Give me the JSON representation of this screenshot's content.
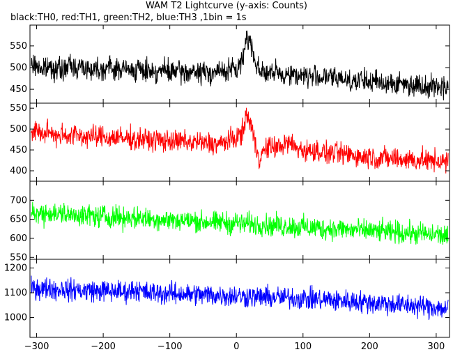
{
  "chart_data": {
    "type": "line",
    "title": "WAM T2 Lightcurve (y-axis: Counts)",
    "subtitle": "black:TH0, red:TH1, green:TH2, blue:TH3 ,1bin = 1s",
    "xlabel": "",
    "ylabel": "",
    "grid": false,
    "legend": "none",
    "x_range": [
      -310,
      320
    ],
    "x_ticks": [
      -300,
      -200,
      -100,
      0,
      100,
      200,
      300
    ],
    "panels": [
      {
        "name": "TH0",
        "color": "#000000",
        "ylim": [
          418,
          598
        ],
        "y_ticks": [
          450,
          500,
          550
        ],
        "series": [
          {
            "x": -300,
            "y": 505
          },
          {
            "x": -290,
            "y": 495
          },
          {
            "x": -280,
            "y": 502
          },
          {
            "x": -270,
            "y": 498
          },
          {
            "x": -260,
            "y": 493
          },
          {
            "x": -250,
            "y": 507
          },
          {
            "x": -240,
            "y": 499
          },
          {
            "x": -230,
            "y": 504
          },
          {
            "x": -220,
            "y": 495
          },
          {
            "x": -210,
            "y": 500
          },
          {
            "x": -200,
            "y": 497
          },
          {
            "x": -190,
            "y": 503
          },
          {
            "x": -180,
            "y": 494
          },
          {
            "x": -170,
            "y": 499
          },
          {
            "x": -160,
            "y": 492
          },
          {
            "x": -150,
            "y": 498
          },
          {
            "x": -140,
            "y": 491
          },
          {
            "x": -130,
            "y": 496
          },
          {
            "x": -120,
            "y": 489
          },
          {
            "x": -110,
            "y": 495
          },
          {
            "x": -100,
            "y": 488
          },
          {
            "x": -90,
            "y": 493
          },
          {
            "x": -80,
            "y": 487
          },
          {
            "x": -70,
            "y": 491
          },
          {
            "x": -60,
            "y": 486
          },
          {
            "x": -50,
            "y": 490
          },
          {
            "x": -40,
            "y": 487
          },
          {
            "x": -30,
            "y": 492
          },
          {
            "x": -20,
            "y": 489
          },
          {
            "x": -10,
            "y": 498
          },
          {
            "x": 0,
            "y": 493
          },
          {
            "x": 10,
            "y": 520
          },
          {
            "x": 15,
            "y": 575
          },
          {
            "x": 20,
            "y": 560
          },
          {
            "x": 25,
            "y": 540
          },
          {
            "x": 30,
            "y": 505
          },
          {
            "x": 40,
            "y": 490
          },
          {
            "x": 50,
            "y": 485
          },
          {
            "x": 60,
            "y": 488
          },
          {
            "x": 70,
            "y": 483
          },
          {
            "x": 80,
            "y": 487
          },
          {
            "x": 90,
            "y": 481
          },
          {
            "x": 100,
            "y": 484
          },
          {
            "x": 110,
            "y": 478
          },
          {
            "x": 120,
            "y": 481
          },
          {
            "x": 130,
            "y": 476
          },
          {
            "x": 140,
            "y": 479
          },
          {
            "x": 150,
            "y": 474
          },
          {
            "x": 160,
            "y": 477
          },
          {
            "x": 170,
            "y": 471
          },
          {
            "x": 180,
            "y": 468
          },
          {
            "x": 190,
            "y": 472
          },
          {
            "x": 200,
            "y": 466
          },
          {
            "x": 210,
            "y": 469
          },
          {
            "x": 220,
            "y": 464
          },
          {
            "x": 230,
            "y": 467
          },
          {
            "x": 240,
            "y": 461
          },
          {
            "x": 250,
            "y": 465
          },
          {
            "x": 260,
            "y": 459
          },
          {
            "x": 270,
            "y": 462
          },
          {
            "x": 280,
            "y": 457
          },
          {
            "x": 290,
            "y": 460
          },
          {
            "x": 300,
            "y": 455
          },
          {
            "x": 310,
            "y": 458
          },
          {
            "x": 318,
            "y": 452
          }
        ]
      },
      {
        "name": "TH1",
        "color": "#ff0000",
        "ylim": [
          375,
          562
        ],
        "y_ticks": [
          400,
          450,
          500,
          550
        ],
        "series": [
          {
            "x": -300,
            "y": 495
          },
          {
            "x": -290,
            "y": 487
          },
          {
            "x": -280,
            "y": 493
          },
          {
            "x": -270,
            "y": 485
          },
          {
            "x": -260,
            "y": 490
          },
          {
            "x": -250,
            "y": 482
          },
          {
            "x": -240,
            "y": 488
          },
          {
            "x": -230,
            "y": 480
          },
          {
            "x": -220,
            "y": 486
          },
          {
            "x": -210,
            "y": 478
          },
          {
            "x": -200,
            "y": 484
          },
          {
            "x": -190,
            "y": 477
          },
          {
            "x": -180,
            "y": 482
          },
          {
            "x": -170,
            "y": 475
          },
          {
            "x": -160,
            "y": 480
          },
          {
            "x": -150,
            "y": 473
          },
          {
            "x": -140,
            "y": 478
          },
          {
            "x": -130,
            "y": 471
          },
          {
            "x": -120,
            "y": 476
          },
          {
            "x": -110,
            "y": 470
          },
          {
            "x": -100,
            "y": 474
          },
          {
            "x": -90,
            "y": 468
          },
          {
            "x": -80,
            "y": 472
          },
          {
            "x": -70,
            "y": 467
          },
          {
            "x": -60,
            "y": 470
          },
          {
            "x": -50,
            "y": 465
          },
          {
            "x": -40,
            "y": 468
          },
          {
            "x": -30,
            "y": 463
          },
          {
            "x": -20,
            "y": 467
          },
          {
            "x": -10,
            "y": 474
          },
          {
            "x": 0,
            "y": 478
          },
          {
            "x": 10,
            "y": 495
          },
          {
            "x": 15,
            "y": 535
          },
          {
            "x": 20,
            "y": 520
          },
          {
            "x": 25,
            "y": 490
          },
          {
            "x": 30,
            "y": 452
          },
          {
            "x": 35,
            "y": 430
          },
          {
            "x": 40,
            "y": 445
          },
          {
            "x": 50,
            "y": 458
          },
          {
            "x": 60,
            "y": 455
          },
          {
            "x": 70,
            "y": 462
          },
          {
            "x": 80,
            "y": 468
          },
          {
            "x": 90,
            "y": 454
          },
          {
            "x": 100,
            "y": 450
          },
          {
            "x": 110,
            "y": 446
          },
          {
            "x": 120,
            "y": 449
          },
          {
            "x": 130,
            "y": 444
          },
          {
            "x": 140,
            "y": 441
          },
          {
            "x": 150,
            "y": 444
          },
          {
            "x": 160,
            "y": 438
          },
          {
            "x": 170,
            "y": 441
          },
          {
            "x": 180,
            "y": 436
          },
          {
            "x": 190,
            "y": 432
          },
          {
            "x": 200,
            "y": 436
          },
          {
            "x": 210,
            "y": 430
          },
          {
            "x": 220,
            "y": 433
          },
          {
            "x": 230,
            "y": 428
          },
          {
            "x": 240,
            "y": 431
          },
          {
            "x": 250,
            "y": 426
          },
          {
            "x": 260,
            "y": 429
          },
          {
            "x": 270,
            "y": 424
          },
          {
            "x": 280,
            "y": 427
          },
          {
            "x": 290,
            "y": 422
          },
          {
            "x": 300,
            "y": 425
          },
          {
            "x": 310,
            "y": 421
          },
          {
            "x": 318,
            "y": 418
          }
        ]
      },
      {
        "name": "TH2",
        "color": "#00ff00",
        "ylim": [
          545,
          750
        ],
        "y_ticks": [
          550,
          600,
          650,
          700
        ],
        "series": [
          {
            "x": -300,
            "y": 668
          },
          {
            "x": -290,
            "y": 663
          },
          {
            "x": -280,
            "y": 670
          },
          {
            "x": -270,
            "y": 661
          },
          {
            "x": -260,
            "y": 667
          },
          {
            "x": -250,
            "y": 659
          },
          {
            "x": -240,
            "y": 665
          },
          {
            "x": -230,
            "y": 657
          },
          {
            "x": -220,
            "y": 662
          },
          {
            "x": -210,
            "y": 656
          },
          {
            "x": -200,
            "y": 660
          },
          {
            "x": -190,
            "y": 654
          },
          {
            "x": -180,
            "y": 659
          },
          {
            "x": -170,
            "y": 652
          },
          {
            "x": -160,
            "y": 657
          },
          {
            "x": -150,
            "y": 651
          },
          {
            "x": -140,
            "y": 655
          },
          {
            "x": -130,
            "y": 649
          },
          {
            "x": -120,
            "y": 653
          },
          {
            "x": -110,
            "y": 647
          },
          {
            "x": -100,
            "y": 651
          },
          {
            "x": -90,
            "y": 645
          },
          {
            "x": -80,
            "y": 649
          },
          {
            "x": -70,
            "y": 643
          },
          {
            "x": -60,
            "y": 647
          },
          {
            "x": -50,
            "y": 641
          },
          {
            "x": -40,
            "y": 645
          },
          {
            "x": -30,
            "y": 640
          },
          {
            "x": -20,
            "y": 644
          },
          {
            "x": -10,
            "y": 638
          },
          {
            "x": 0,
            "y": 642
          },
          {
            "x": 10,
            "y": 636
          },
          {
            "x": 20,
            "y": 640
          },
          {
            "x": 30,
            "y": 634
          },
          {
            "x": 40,
            "y": 638
          },
          {
            "x": 50,
            "y": 632
          },
          {
            "x": 60,
            "y": 636
          },
          {
            "x": 70,
            "y": 630
          },
          {
            "x": 80,
            "y": 634
          },
          {
            "x": 90,
            "y": 628
          },
          {
            "x": 100,
            "y": 632
          },
          {
            "x": 110,
            "y": 626
          },
          {
            "x": 120,
            "y": 630
          },
          {
            "x": 130,
            "y": 624
          },
          {
            "x": 140,
            "y": 628
          },
          {
            "x": 150,
            "y": 622
          },
          {
            "x": 160,
            "y": 626
          },
          {
            "x": 170,
            "y": 620
          },
          {
            "x": 180,
            "y": 624
          },
          {
            "x": 190,
            "y": 618
          },
          {
            "x": 200,
            "y": 622
          },
          {
            "x": 210,
            "y": 616
          },
          {
            "x": 220,
            "y": 620
          },
          {
            "x": 230,
            "y": 614
          },
          {
            "x": 240,
            "y": 618
          },
          {
            "x": 250,
            "y": 612
          },
          {
            "x": 260,
            "y": 616
          },
          {
            "x": 270,
            "y": 610
          },
          {
            "x": 280,
            "y": 614
          },
          {
            "x": 290,
            "y": 608
          },
          {
            "x": 300,
            "y": 612
          },
          {
            "x": 310,
            "y": 606
          },
          {
            "x": 318,
            "y": 603
          }
        ]
      },
      {
        "name": "TH3",
        "color": "#0000ff",
        "ylim": [
          920,
          1235
        ],
        "y_ticks": [
          1000,
          1100,
          1200
        ],
        "series": [
          {
            "x": -300,
            "y": 1120
          },
          {
            "x": -290,
            "y": 1112
          },
          {
            "x": -280,
            "y": 1124
          },
          {
            "x": -270,
            "y": 1110
          },
          {
            "x": -260,
            "y": 1118
          },
          {
            "x": -250,
            "y": 1108
          },
          {
            "x": -240,
            "y": 1115
          },
          {
            "x": -230,
            "y": 1106
          },
          {
            "x": -220,
            "y": 1113
          },
          {
            "x": -210,
            "y": 1104
          },
          {
            "x": -200,
            "y": 1111
          },
          {
            "x": -190,
            "y": 1103
          },
          {
            "x": -180,
            "y": 1109
          },
          {
            "x": -170,
            "y": 1101
          },
          {
            "x": -160,
            "y": 1107
          },
          {
            "x": -150,
            "y": 1115
          },
          {
            "x": -140,
            "y": 1103
          },
          {
            "x": -130,
            "y": 1097
          },
          {
            "x": -120,
            "y": 1102
          },
          {
            "x": -110,
            "y": 1095
          },
          {
            "x": -100,
            "y": 1100
          },
          {
            "x": -90,
            "y": 1093
          },
          {
            "x": -80,
            "y": 1098
          },
          {
            "x": -70,
            "y": 1091
          },
          {
            "x": -60,
            "y": 1096
          },
          {
            "x": -50,
            "y": 1089
          },
          {
            "x": -40,
            "y": 1094
          },
          {
            "x": -30,
            "y": 1087
          },
          {
            "x": -20,
            "y": 1092
          },
          {
            "x": -10,
            "y": 1085
          },
          {
            "x": 0,
            "y": 1090
          },
          {
            "x": 10,
            "y": 1083
          },
          {
            "x": 20,
            "y": 1088
          },
          {
            "x": 30,
            "y": 1081
          },
          {
            "x": 40,
            "y": 1086
          },
          {
            "x": 50,
            "y": 1079
          },
          {
            "x": 60,
            "y": 1084
          },
          {
            "x": 70,
            "y": 1077
          },
          {
            "x": 80,
            "y": 1082
          },
          {
            "x": 90,
            "y": 1075
          },
          {
            "x": 100,
            "y": 1080
          },
          {
            "x": 110,
            "y": 1072
          },
          {
            "x": 120,
            "y": 1077
          },
          {
            "x": 130,
            "y": 1069
          },
          {
            "x": 140,
            "y": 1074
          },
          {
            "x": 150,
            "y": 1066
          },
          {
            "x": 160,
            "y": 1071
          },
          {
            "x": 170,
            "y": 1063
          },
          {
            "x": 180,
            "y": 1068
          },
          {
            "x": 190,
            "y": 1060
          },
          {
            "x": 200,
            "y": 1064
          },
          {
            "x": 210,
            "y": 1056
          },
          {
            "x": 220,
            "y": 1060
          },
          {
            "x": 230,
            "y": 1052
          },
          {
            "x": 240,
            "y": 1056
          },
          {
            "x": 250,
            "y": 1048
          },
          {
            "x": 260,
            "y": 1052
          },
          {
            "x": 270,
            "y": 1044
          },
          {
            "x": 280,
            "y": 1048
          },
          {
            "x": 290,
            "y": 1040
          },
          {
            "x": 300,
            "y": 1044
          },
          {
            "x": 310,
            "y": 1036
          },
          {
            "x": 318,
            "y": 1032
          }
        ]
      }
    ]
  }
}
